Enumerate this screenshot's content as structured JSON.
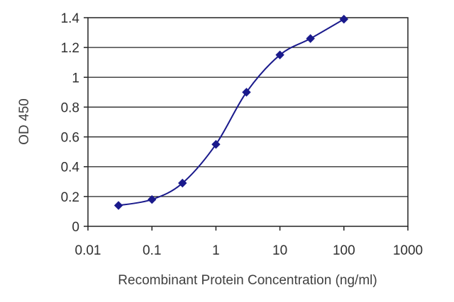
{
  "chart_data": {
    "type": "line",
    "title": "",
    "xlabel": "Recombinant Protein Concentration (ng/ml)",
    "ylabel": "OD 450",
    "x_scale": "log",
    "xlim": [
      0.01,
      1000
    ],
    "ylim": [
      0,
      1.4
    ],
    "x_ticks": [
      0.01,
      0.1,
      1,
      10,
      100,
      1000
    ],
    "x_tick_labels": [
      "0.01",
      "0.1",
      "1",
      "10",
      "100",
      "1000"
    ],
    "y_ticks": [
      0,
      0.2,
      0.4,
      0.6,
      0.8,
      1,
      1.2,
      1.4
    ],
    "y_tick_labels": [
      "0",
      "0.2",
      "0.4",
      "0.6",
      "0.8",
      "1",
      "1.2",
      "1.4"
    ],
    "grid": "horizontal",
    "legend": "none",
    "series": [
      {
        "x": [
          0.03,
          0.1,
          0.3,
          1,
          3,
          10,
          30,
          100
        ],
        "y": [
          0.14,
          0.18,
          0.29,
          0.55,
          0.9,
          1.15,
          1.26,
          1.39
        ],
        "color": "#1a1a8c"
      }
    ],
    "colors": {
      "line": "#1a1a8c",
      "marker": "#1a1a8c",
      "grid": "#222222",
      "frame": "#222222",
      "background": "#ffffff"
    }
  }
}
